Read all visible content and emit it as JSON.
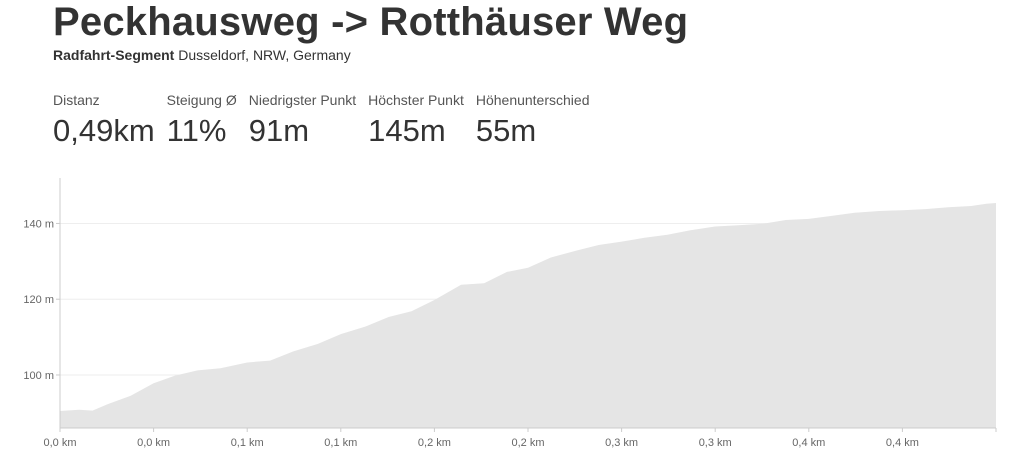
{
  "header": {
    "title": "Peckhausweg -> Rotthäuser Weg",
    "segment_type": "Radfahrt-Segment",
    "location": "Dusseldorf, NRW, Germany"
  },
  "stats": [
    {
      "label": "Distanz",
      "value": "0,49km"
    },
    {
      "label": "Steigung Ø",
      "value": "11%"
    },
    {
      "label": "Niedrigster Punkt",
      "value": "91m"
    },
    {
      "label": "Höchster Punkt",
      "value": "145m"
    },
    {
      "label": "Höhenunterschied",
      "value": "55m"
    }
  ],
  "colors": {
    "area_fill": "#e5e5e5",
    "axis": "#cccccc",
    "gridline": "#eeeeee"
  },
  "chart_data": {
    "type": "area",
    "xlabel": "",
    "ylabel": "",
    "xlim": [
      0,
      0.49
    ],
    "ylim": [
      86,
      152
    ],
    "y_ticks": [
      {
        "value": 100,
        "label": "100 m"
      },
      {
        "value": 120,
        "label": "120 m"
      },
      {
        "value": 140,
        "label": "140 m"
      }
    ],
    "x_ticks": [
      {
        "value": 0.0,
        "label": "0,0 km"
      },
      {
        "value": 0.049,
        "label": "0,0 km"
      },
      {
        "value": 0.098,
        "label": "0,1 km"
      },
      {
        "value": 0.147,
        "label": "0,1 km"
      },
      {
        "value": 0.196,
        "label": "0,2 km"
      },
      {
        "value": 0.245,
        "label": "0,2 km"
      },
      {
        "value": 0.294,
        "label": "0,3 km"
      },
      {
        "value": 0.343,
        "label": "0,3 km"
      },
      {
        "value": 0.392,
        "label": "0,4 km"
      },
      {
        "value": 0.441,
        "label": "0,4 km"
      }
    ],
    "grid": true,
    "series": [
      {
        "x": [
          0.0,
          0.01,
          0.017,
          0.025,
          0.037,
          0.049,
          0.06,
          0.072,
          0.084,
          0.098,
          0.11,
          0.122,
          0.135,
          0.147,
          0.16,
          0.172,
          0.184,
          0.196,
          0.21,
          0.222,
          0.234,
          0.245,
          0.257,
          0.27,
          0.282,
          0.294,
          0.306,
          0.318,
          0.33,
          0.343,
          0.355,
          0.368,
          0.38,
          0.392,
          0.404,
          0.416,
          0.429,
          0.441,
          0.453,
          0.465,
          0.477,
          0.485,
          0.49
        ],
        "y": [
          90.5,
          90.8,
          90.6,
          92.3,
          94.5,
          97.8,
          99.8,
          101.2,
          101.8,
          103.3,
          103.8,
          106.2,
          108.2,
          110.8,
          112.8,
          115.3,
          116.8,
          119.8,
          123.8,
          124.2,
          127.2,
          128.3,
          131.0,
          132.8,
          134.3,
          135.2,
          136.2,
          137.0,
          138.2,
          139.2,
          139.5,
          139.9,
          140.9,
          141.2,
          142.0,
          142.8,
          143.3,
          143.5,
          143.8,
          144.3,
          144.6,
          145.2,
          145.4
        ]
      }
    ]
  }
}
